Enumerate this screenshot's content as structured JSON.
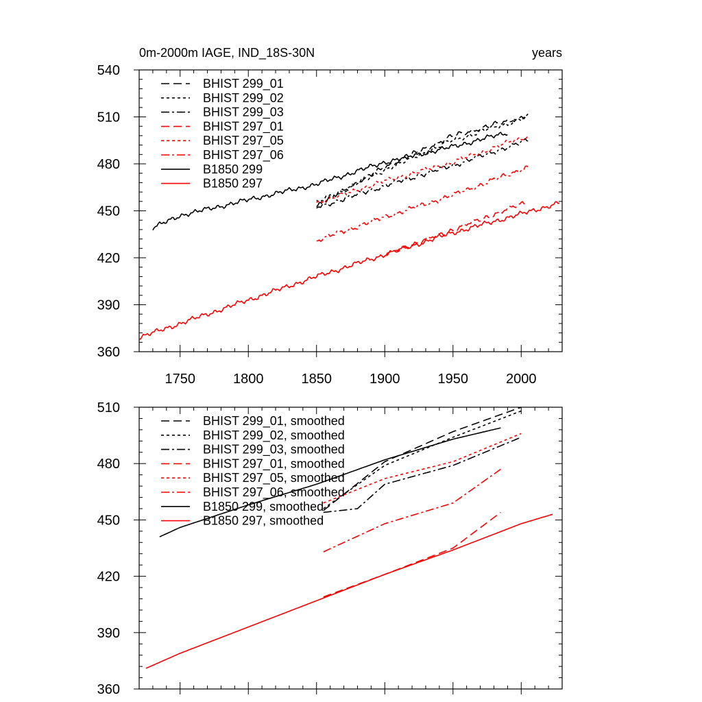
{
  "chart_data": [
    {
      "type": "line",
      "title": "0m-2000m IAGE, IND_18S-30N",
      "units_label": "years",
      "xlim": [
        1720,
        2030
      ],
      "ylim": [
        360,
        540
      ],
      "xticks": [
        1750,
        1800,
        1850,
        1900,
        1950,
        2000
      ],
      "yticks": [
        360,
        390,
        420,
        450,
        480,
        510,
        540
      ],
      "xlabel": "",
      "ylabel": "",
      "show_xtick_labels": true,
      "legend_position": "top-left",
      "series": [
        {
          "name": "BHIST 299_01",
          "color": "#000000",
          "dash": "dash",
          "x": [
            1850,
            1900,
            1950,
            2005
          ],
          "y": [
            453,
            478,
            498,
            511
          ]
        },
        {
          "name": "BHIST 299_02",
          "color": "#000000",
          "dash": "dot",
          "x": [
            1850,
            1900,
            1950,
            2005
          ],
          "y": [
            455,
            476,
            495,
            510
          ]
        },
        {
          "name": "BHIST 299_03",
          "color": "#000000",
          "dash": "dashdot",
          "x": [
            1850,
            1900,
            1950,
            2005
          ],
          "y": [
            452,
            466,
            479,
            495
          ]
        },
        {
          "name": "BHIST 297_01",
          "color": "#ff0000",
          "dash": "dash",
          "x": [
            1900,
            1950,
            2005
          ],
          "y": [
            422,
            438,
            456
          ]
        },
        {
          "name": "BHIST 297_05",
          "color": "#ff0000",
          "dash": "dot",
          "x": [
            1850,
            1900,
            1950,
            2005
          ],
          "y": [
            455,
            469,
            481,
            498
          ]
        },
        {
          "name": "BHIST 297_06",
          "color": "#ff0000",
          "dash": "dashdot",
          "x": [
            1850,
            1900,
            1950,
            2005
          ],
          "y": [
            431,
            446,
            460,
            478
          ]
        },
        {
          "name": "B1850 299",
          "color": "#000000",
          "dash": "solid",
          "x": [
            1730,
            1750,
            1800,
            1850,
            1900,
            1950,
            1990
          ],
          "y": [
            439,
            447,
            457,
            467,
            481,
            491,
            500
          ]
        },
        {
          "name": "B1850 297",
          "color": "#ff0000",
          "dash": "solid",
          "x": [
            1720,
            1750,
            1800,
            1850,
            1900,
            1950,
            2000,
            2028
          ],
          "y": [
            369,
            378,
            393,
            408,
            422,
            436,
            448,
            455
          ]
        }
      ]
    },
    {
      "type": "line",
      "title": "",
      "units_label": "",
      "xlim": [
        1720,
        2030
      ],
      "ylim": [
        360,
        510
      ],
      "xticks": [
        1750,
        1800,
        1850,
        1900,
        1950,
        2000
      ],
      "yticks": [
        360,
        390,
        420,
        450,
        480,
        510
      ],
      "xlabel": "",
      "ylabel": "",
      "show_xtick_labels": false,
      "legend_position": "top-left",
      "series": [
        {
          "name": "BHIST 299_01, smoothed",
          "color": "#000000",
          "dash": "dash",
          "x": [
            1855,
            1900,
            1950,
            2000
          ],
          "y": [
            455,
            481,
            497,
            510
          ]
        },
        {
          "name": "BHIST 299_02, smoothed",
          "color": "#000000",
          "dash": "dot",
          "x": [
            1855,
            1900,
            1950,
            2000
          ],
          "y": [
            456,
            479,
            494,
            508
          ]
        },
        {
          "name": "BHIST 299_03, smoothed",
          "color": "#000000",
          "dash": "dashdot",
          "x": [
            1855,
            1880,
            1900,
            1950,
            2000
          ],
          "y": [
            454,
            456,
            469,
            479,
            494
          ]
        },
        {
          "name": "BHIST 297_01, smoothed",
          "color": "#ff0000",
          "dash": "dash",
          "x": [
            1855,
            1900,
            1950,
            1985
          ],
          "y": [
            409,
            421,
            435,
            454
          ]
        },
        {
          "name": "BHIST 297_05, smoothed",
          "color": "#ff0000",
          "dash": "dot",
          "x": [
            1855,
            1900,
            1950,
            2000
          ],
          "y": [
            459,
            472,
            481,
            496
          ]
        },
        {
          "name": "BHIST 297_06, smoothed",
          "color": "#ff0000",
          "dash": "dashdot",
          "x": [
            1855,
            1900,
            1950,
            1985
          ],
          "y": [
            433,
            448,
            459,
            477
          ]
        },
        {
          "name": "B1850 299, smoothed",
          "color": "#000000",
          "dash": "solid",
          "x": [
            1735,
            1750,
            1800,
            1850,
            1900,
            1950,
            1985
          ],
          "y": [
            441,
            446,
            458,
            469,
            482,
            493,
            499
          ]
        },
        {
          "name": "B1850 297, smoothed",
          "color": "#ff0000",
          "dash": "solid",
          "x": [
            1725,
            1750,
            1800,
            1850,
            1900,
            1950,
            2000,
            2023
          ],
          "y": [
            371,
            379,
            393,
            407,
            421,
            434,
            448,
            453
          ]
        }
      ]
    }
  ]
}
